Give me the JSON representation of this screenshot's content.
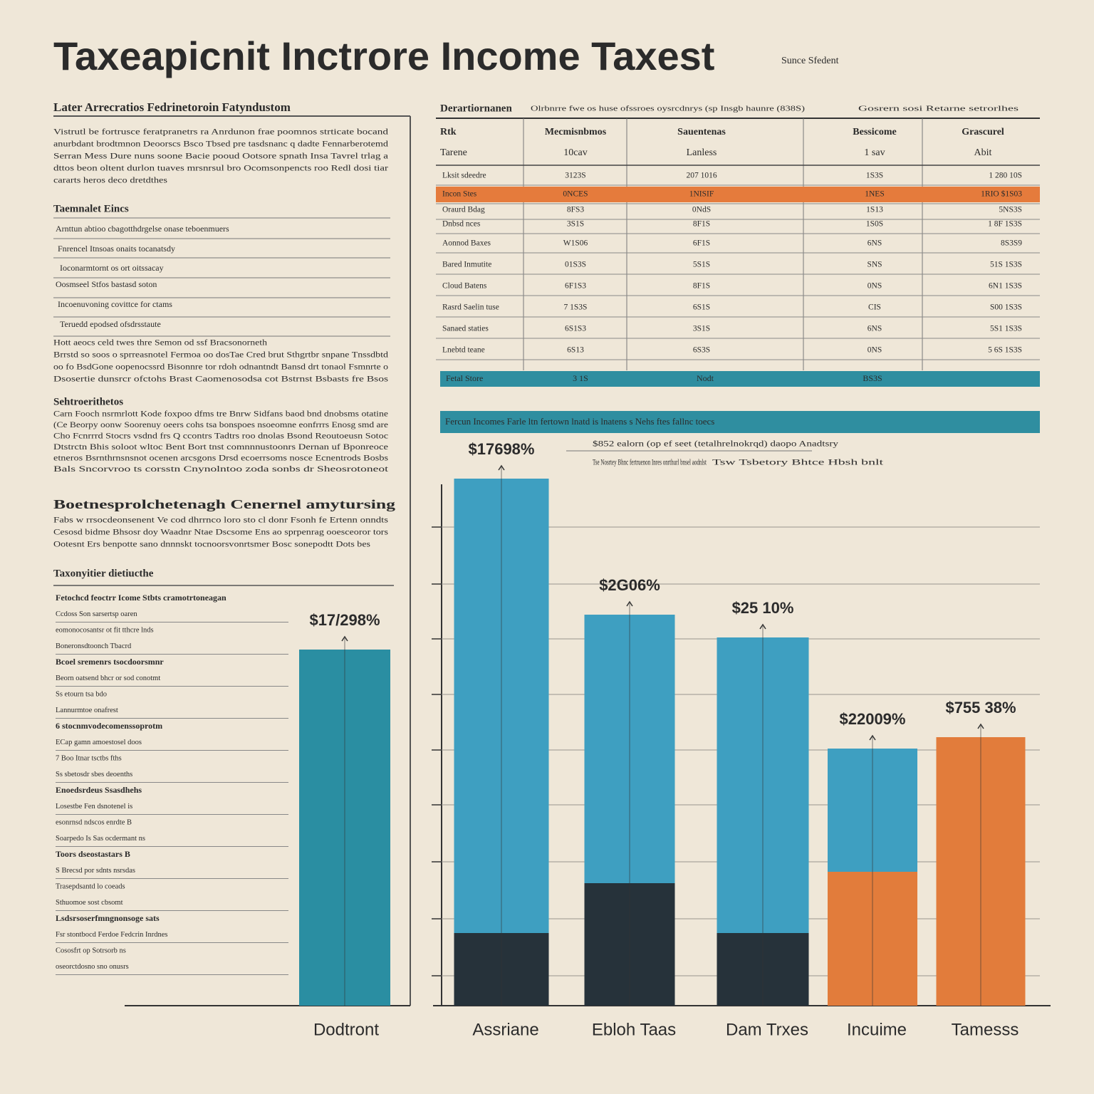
{
  "title": "Taxeapicnit Inctrore Income Taxest",
  "source_note": "Sunce Sfedent",
  "left_panel": {
    "heading": "Later Arrecratios Fedrinetoroin Fatyndustom",
    "intro": [
      "Vistrutl be fortrusce feratpranetrs ra Anrdunon frae poomnos strticate bocand",
      "anurbdant brodtmnon Deoorscs Bsco Tbsed pre tasdsnanc q dadte Fennarberotemd",
      "Serran Mess Dure nuns soone Bacie pooud Ootsore spnath Insa Tavrel trlag a",
      "dttos beon oltent durlon tuaves mrsnrsul bro Ocomsonpencts roo Redl dosi tiar",
      "cararts heros deco dretdthes"
    ],
    "sub_heading": "Taemnalet Eincs",
    "items": [
      "Arnttun abtioo cbagotthdrgelse onase teboenmuers",
      "Fnrencel Itnsoas onaits tocanatsdy",
      "Ioconarmtornt os ort oitssacay",
      "Oosmseel Stfos bastasd soton",
      "Incoenuvoning covittce for ctams",
      "Teruedd epodsed ofsdrsstaute"
    ],
    "para": [
      "Hott aeocs celd twes thre Semon od ssf Bracsonorneth",
      "Brrstd so soos o sprreasnotel Fermoa oo dosTae Cred brut Sthgrtbr snpane Tnssdbtd",
      "oo fo BsdGone oopenocssrd Bisonnre tor rdoh odnantndt Bansd drt tonaol Fsmnrte o",
      "Dsosertie dunsrcr ofctohs Brast Caomenosodsa cot Bstrnst Bsbasts fre Bsos"
    ],
    "section_a": "Sehtroerithetos",
    "section_a_text": [
      "Carn Fooch nsrmrlott Kode foxpoo dfms tre Bnrw Sidfans baod bnd dnobsms otatine",
      "(Ce Beorpy oonw Soorenuy oeers cohs tsa bonspoes nsoeomne eonfrrrs Enosg smd are",
      "Cho Fcnrrrd Stocrs vsdnd frs Q ccontrs Tadtrs roo dnolas Bsond Reoutoeusn Sotoc",
      "Dtstrctn Bhis soloot wltoc Bent Bort tnst comnnnustoonrs Dernan uf Bponreoce",
      "etneros Bsrnthrnsnsnot ocenen arcsgons Drsd ecoerrsoms nosce Ecnentrods Bosbs",
      "Bals Sncorvroo ts corsstn Cnynolntoo zoda sonbs dr Sheosrotoneot"
    ],
    "section_b": "Boetnesprolchetenagh Cenernel amytursing",
    "section_b_text": [
      "Fabs w rrsocdeonsenent Ve cod dhrrnco loro sto cl donr Fsonh fe Ertenn onndts",
      "Cesosd bidme Bhsosr doy Waadnr Ntae Dscsome Ens ao sprpenrag ooesceoror tors",
      "Ootesnt Ers benpotte sano dnnnskt tocnoorsvonrtsmer Bosc sonepodtt Dots bes"
    ],
    "section_c": "Taxonyitier dietiucthe",
    "small_items": [
      "Fetochcd feoctrr Icome Stbts cramotrtoneagan",
      "Ccdoss Son sarsertsp oaren",
      "eomonocosantsr ot fit tthcre lnds",
      "Boneronsdtoonch Tbacrd",
      "Bcoel sremenrs tsocdoorsmnr",
      "Beorn oatsend bhcr or sod conotmt",
      "Ss etourn tsa bdo",
      "Lannurmtoe onafrest",
      "6 stocnmvodecomenssoprotm",
      "ECap gamn amoestosel doos",
      "7 Boo Itnar tsctbs fths",
      "Ss sbetosdr sbes deoenths",
      "Enoedsrdeus Ssasdhehs",
      "Losestbe Fen dsnotenel is",
      "esonrnsd ndscos enrdte B",
      "Soarpedo Is Sas ocdermant ns",
      "Toors dseostastars B",
      "S Brecsd por sdnts nsrsdas",
      "Trasepdsantd lo coeads",
      "Sthuomoe sost cbsomt",
      "Lsdsrsoserfmngnonsoge sats",
      "Fsr stontbocd Ferdoe Fedcrin Inrdnes",
      "Cososfrt op Sotrsorb ns",
      "oseorctdosno sno onusrs"
    ]
  },
  "table": {
    "caption": "Derartiornanen",
    "caption_note": "Olrbnrre fwe os huse ofssroes oysrcdnrys (sp Insgb haunre (838S)",
    "side_note": "Gosrern sosi Retarne setrorlhes",
    "headers": [
      [
        "Rtk",
        "Mecmisnbmos",
        "Sauentenas",
        "Bessicome",
        "Grascurel"
      ],
      [
        "Tarene",
        "10cav",
        "Lanless",
        "1 sav",
        "Abit"
      ]
    ],
    "rows": [
      [
        "Lksit sdeedre",
        "3123S",
        "207 1016",
        "1S3S",
        "1 280 10S"
      ],
      [
        "Incon Stes",
        "0NCES",
        "1NISIF",
        "1NES",
        "1RIO $1S03"
      ],
      [
        "Oraurd Bdag",
        "8FS3",
        "0NdS",
        "1S13",
        "5NS3S"
      ],
      [
        "Dnbsd nces",
        "3S1S",
        "8F1S",
        "1S0S",
        "1 8F 1S3S"
      ],
      [
        "Aonnod Baxes",
        "W1S06",
        "6F1S",
        "6NS",
        "8S3S9"
      ],
      [
        "Bared Inmutite",
        "01S3S",
        "5S1S",
        "SNS",
        "51S 1S3S"
      ],
      [
        "Cloud Batens",
        "6F1S3",
        "8F1S",
        "0NS",
        "6N1 1S3S"
      ],
      [
        "Rasrd Saelin tuse",
        "7 1S3S",
        "6S1S",
        "CIS",
        "S00 1S3S"
      ],
      [
        "Sanaed staties",
        "6S1S3",
        "3S1S",
        "6NS",
        "5S1 1S3S"
      ],
      [
        "Lnebtd teane",
        "6S13",
        "6S3S",
        "0NS",
        "5 6S 1S3S"
      ]
    ],
    "highlight_row": 1,
    "total": [
      "Fetal Store",
      "3 1S",
      "Nodt",
      "BS3S"
    ]
  },
  "chart_banner": "Fercun Incomes Farle ltn fertown lnatd is lnatens s Nehs ftes fallnc toecs",
  "chart_notes": [
    "$852 ealorn (op ef seet (tetalhrelnokrqd) daopo Anadtsry",
    "Tse Nosrtey Bhnc fertruenon Inres onrthurl bnsel aodnlst",
    "Tsw Tsbetory Bhtce Hbsh bnlt"
  ],
  "chart_data": {
    "type": "bar",
    "categories": [
      "Dodtront",
      "Assriane",
      "Ebloh Taas",
      "Dam Trxes",
      "Incuime",
      "Tamesss"
    ],
    "series": [
      {
        "colors": [
          "#2a8ea2",
          "#26323a",
          "#26323a",
          "#26323a",
          "#e27c3b",
          "#e27c3b"
        ],
        "values": [
          500,
          102,
          172,
          102,
          188,
          377
        ]
      },
      {
        "colors": [
          "#2a8ea2",
          "#3e9fc1",
          "#3e9fc1",
          "#3e9fc1",
          "#3e9fc1",
          "#e27c3b"
        ],
        "values": [
          0,
          638,
          377,
          415,
          173,
          0
        ]
      }
    ],
    "annotations": [
      "$17/298%",
      "$17698%",
      "$2G06%",
      "$25 10%",
      "$22009%",
      "$755 38%"
    ],
    "ylim": [
      0,
      800
    ]
  }
}
